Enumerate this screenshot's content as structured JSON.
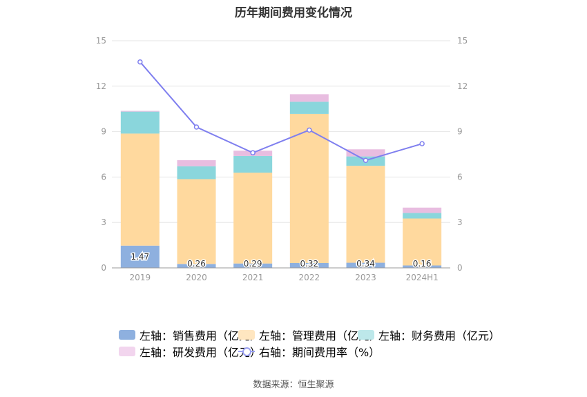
{
  "chart_data": {
    "type": "bar",
    "title": "历年期间费用变化情况",
    "categories": [
      "2019",
      "2020",
      "2021",
      "2022",
      "2023",
      "2024H1"
    ],
    "left_axis": {
      "min": 0,
      "max": 15,
      "ticks": [
        "0",
        "3",
        "6",
        "9",
        "12",
        "15"
      ]
    },
    "right_axis": {
      "min": 0,
      "max": 15,
      "ticks": [
        "0",
        "3",
        "6",
        "9",
        "12",
        "15"
      ]
    },
    "series": [
      {
        "name": "左轴：销售费用（亿元）",
        "type": "bar",
        "axis": "left",
        "color": "#8eb0df",
        "values": [
          1.47,
          0.26,
          0.29,
          0.32,
          0.34,
          0.16
        ],
        "labels": [
          "1.47",
          "0.26",
          "0.29",
          "0.32",
          "0.34",
          "0.16"
        ]
      },
      {
        "name": "左轴：管理费用（亿元）",
        "type": "bar",
        "axis": "left",
        "color": "#ffd99e",
        "values": [
          7.4,
          5.6,
          6.0,
          9.85,
          6.4,
          3.1
        ]
      },
      {
        "name": "左轴：财务费用（亿元）",
        "type": "bar",
        "axis": "left",
        "color": "#8ad6dc",
        "values": [
          1.45,
          0.85,
          1.1,
          0.8,
          0.62,
          0.37
        ]
      },
      {
        "name": "左轴：研发费用（亿元）",
        "type": "bar",
        "axis": "left",
        "color": "#e8bde0",
        "values": [
          0.05,
          0.4,
          0.35,
          0.5,
          0.47,
          0.35
        ]
      },
      {
        "name": "右轴：期间费用率（%）",
        "type": "line",
        "axis": "right",
        "color": "#7f7fef",
        "values": [
          13.6,
          9.3,
          7.6,
          9.1,
          7.1,
          8.2
        ]
      }
    ],
    "legend_position": "bottom",
    "grid": true
  },
  "legend_colors": [
    "#8eb0df",
    "#ffe6c0",
    "#bde8ea",
    "#f2d5ee",
    "#9aa0f2"
  ],
  "source": "数据来源：恒生聚源"
}
